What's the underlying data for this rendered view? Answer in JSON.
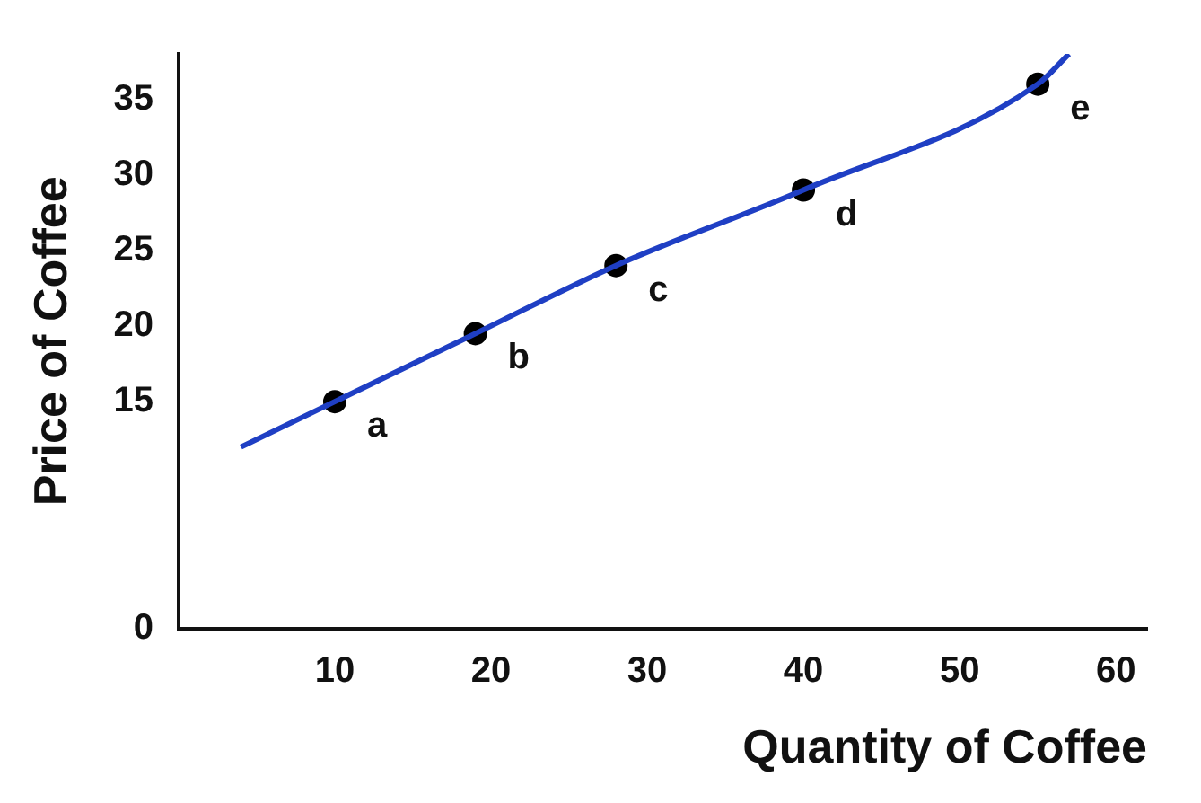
{
  "chart_data": {
    "type": "scatter",
    "xlabel": "Quantity of Coffee",
    "ylabel": "Price of Coffee",
    "xlim": [
      0,
      62
    ],
    "xticks": [
      10,
      20,
      30,
      40,
      50,
      60
    ],
    "ylim": [
      0,
      38
    ],
    "yticks": [
      0,
      15,
      20,
      25,
      30,
      35
    ],
    "grid": false,
    "legend": false,
    "series": [
      {
        "type": "line",
        "marker": "none",
        "color": "#1f3fc4",
        "x": [
          4,
          10,
          19,
          28,
          40,
          55,
          57
        ],
        "values": [
          12,
          15,
          19.5,
          24,
          29,
          36,
          38
        ]
      },
      {
        "marker": "circle",
        "color": "#000000",
        "x": [
          10,
          19,
          28,
          40,
          55
        ],
        "values": [
          15,
          19.5,
          24,
          29,
          36
        ]
      }
    ],
    "annotations": [
      {
        "text": "a",
        "x": 10,
        "y": 15
      },
      {
        "text": "b",
        "x": 19,
        "y": 19.5
      },
      {
        "text": "c",
        "x": 28,
        "y": 24
      },
      {
        "text": "d",
        "x": 40,
        "y": 29
      },
      {
        "text": "e",
        "x": 55,
        "y": 36
      }
    ]
  }
}
